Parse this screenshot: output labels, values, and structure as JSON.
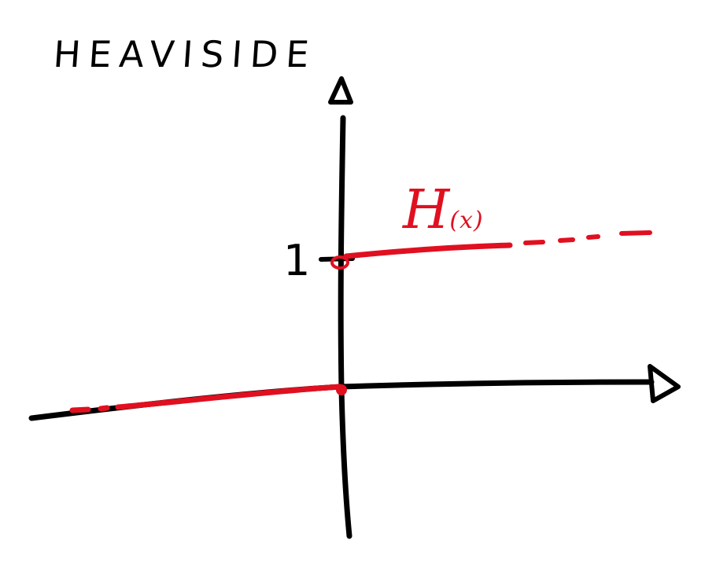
{
  "title": "HEAVISIDE",
  "y_tick_label": "1",
  "function_label": {
    "name": "H",
    "argument": "(x)"
  },
  "colors": {
    "axes": "#000000",
    "function": "#e01020",
    "background": "#ffffff"
  },
  "icons": {
    "y_axis_arrow": "arrow-up-icon",
    "x_axis_arrow": "arrow-right-icon"
  },
  "chart_data": {
    "type": "line",
    "series": [
      {
        "x": [
          -1,
          0
        ],
        "y": [
          0,
          0
        ]
      },
      {
        "x": [
          0,
          1
        ],
        "y": [
          1,
          1
        ]
      }
    ],
    "points": [
      {
        "x": 0,
        "y": 0,
        "style": "filled"
      },
      {
        "x": 0,
        "y": 1,
        "style": "open"
      }
    ],
    "yticks": [
      "1"
    ],
    "grid": false
  }
}
